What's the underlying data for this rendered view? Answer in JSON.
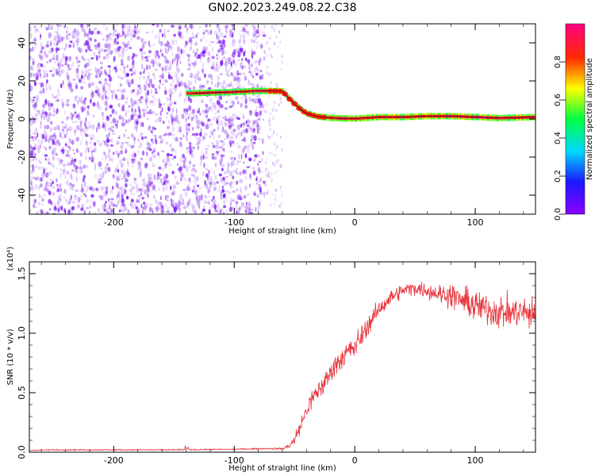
{
  "title": "GN02.2023.249.08.22.C38",
  "colors": {
    "snr_line": "#e8333a",
    "trace_outline": "#000000",
    "scatter_points": "#7b1bf0",
    "background": "#ffffff"
  },
  "chart_data": [
    {
      "type": "heatmap",
      "title": "",
      "xlabel": "Height of straight line (km)",
      "ylabel": "Frequency (Hz)",
      "xlim": [
        -270,
        150
      ],
      "ylim": [
        -50,
        50
      ],
      "xticks": [
        -200,
        -100,
        0,
        100
      ],
      "yticks": [
        -40,
        -20,
        0,
        20,
        40
      ],
      "colorbar": {
        "label": "Normalized spectral amplitude",
        "range": [
          0,
          1
        ],
        "ticks": [
          0.0,
          0.2,
          0.4,
          0.6,
          0.8
        ],
        "colormap": "rainbow (violet-blue-cyan-green-yellow-red-magenta)"
      },
      "noise_region": {
        "x_range": [
          -270,
          -75
        ],
        "amplitude": "low (0.1-0.3)"
      },
      "trace": {
        "x": [
          -135,
          -120,
          -100,
          -90,
          -80,
          -70,
          -60,
          -55,
          -50,
          -45,
          -40,
          -35,
          -30,
          -20,
          -10,
          0,
          20,
          40,
          60,
          80,
          100,
          120,
          150
        ],
        "y": [
          13.5,
          13.8,
          14.2,
          14.5,
          14.8,
          14.7,
          14.6,
          11,
          8,
          5,
          3,
          2,
          1.2,
          0.6,
          0.3,
          0.2,
          1,
          1,
          1.5,
          1.5,
          1,
          0.5,
          1
        ],
        "amplitude": "high (0.8-1.0)"
      },
      "grid": false
    },
    {
      "type": "line",
      "title": "",
      "xlabel": "Height of straight line (km)",
      "ylabel": "SNR (10 * v/v)",
      "y_multiplier": "(x10⁴)",
      "xlim": [
        -270,
        150
      ],
      "ylim": [
        0,
        1.6
      ],
      "xticks": [
        -200,
        -100,
        0,
        100
      ],
      "yticks": [
        0.0,
        0.5,
        1.0,
        1.5
      ],
      "series": [
        {
          "x": [
            -270,
            -250,
            -200,
            -150,
            -100,
            -75,
            -60,
            -55,
            -50,
            -45,
            -40,
            -35,
            -30,
            -25,
            -20,
            -15,
            -10,
            -5,
            0,
            10,
            20,
            30,
            40,
            50,
            60,
            70,
            80,
            90,
            100,
            110,
            120,
            130,
            140,
            150
          ],
          "values": [
            0.015,
            0.02,
            0.02,
            0.02,
            0.025,
            0.03,
            0.03,
            0.05,
            0.1,
            0.22,
            0.35,
            0.45,
            0.52,
            0.58,
            0.67,
            0.75,
            0.8,
            0.85,
            0.88,
            1.05,
            1.2,
            1.3,
            1.36,
            1.38,
            1.36,
            1.33,
            1.32,
            1.27,
            1.23,
            1.2,
            1.18,
            1.17,
            1.18,
            1.14
          ],
          "noise": [
            0.006,
            0.006,
            0.006,
            0.006,
            0.006,
            0.006,
            0.01,
            0.03,
            0.06,
            0.08,
            0.1,
            0.1,
            0.1,
            0.11,
            0.11,
            0.11,
            0.12,
            0.12,
            0.12,
            0.1,
            0.08,
            0.08,
            0.07,
            0.07,
            0.08,
            0.1,
            0.12,
            0.14,
            0.16,
            0.16,
            0.16,
            0.16,
            0.15,
            0.15
          ]
        }
      ],
      "grid": false
    }
  ]
}
